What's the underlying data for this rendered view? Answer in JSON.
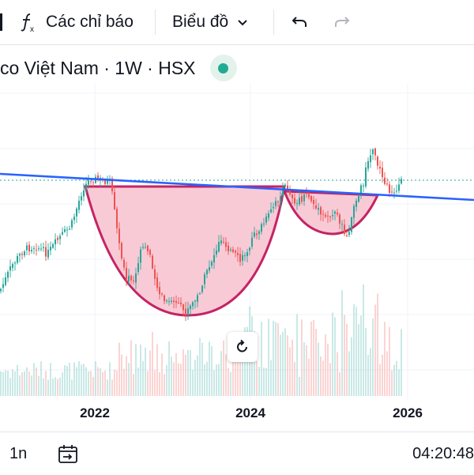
{
  "toolbar": {
    "indicators_label": "Các chỉ báo",
    "chart_label": "Biểu đồ",
    "icons": [
      "function-icon",
      "chevron-down-icon",
      "undo-icon",
      "redo-icon"
    ]
  },
  "symbol": {
    "text": "co Việt Nam · 1W · HSX",
    "market_status_color": "#22ab94"
  },
  "chart_data": {
    "type": "candlestick",
    "interval": "1W",
    "x_ticks": [
      "2022",
      "2024",
      "2026"
    ],
    "trendline_color": "#2962ff",
    "pattern": "cup-and-handle",
    "pattern_fill": "#f8c8d4",
    "pattern_stroke": "#c2185b",
    "up_color": "#26a69a",
    "down_color": "#ef5350"
  },
  "bottom": {
    "range_label": "1n",
    "time": "04:20:48",
    "icons": [
      "date-range-icon"
    ]
  },
  "reset": {
    "icon": "reset-icon"
  }
}
